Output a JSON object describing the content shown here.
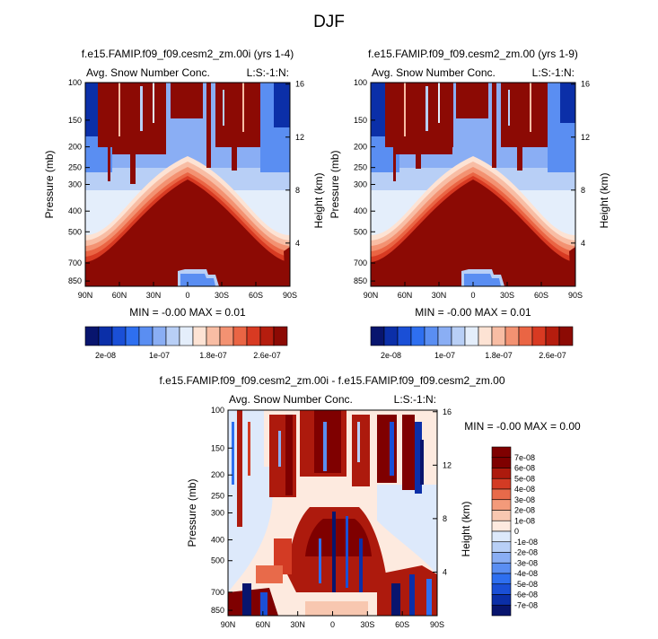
{
  "page_title": "DJF",
  "chart_data": [
    {
      "type": "heatmap",
      "id": "p1",
      "title": "f.e15.FAMIP.f09_f09.cesm2_zm.00i (yrs 1-4)",
      "left_label": "Avg. Snow Number Conc.",
      "right_label": "L:S:-1:N:",
      "ylabel": "Pressure (mb)",
      "y2label": "Height (km)",
      "x_ticks": [
        "90N",
        "60N",
        "30N",
        "0",
        "30S",
        "60S",
        "90S"
      ],
      "y_ticks": [
        "100",
        "150",
        "200",
        "250",
        "300",
        "400",
        "500",
        "700",
        "850"
      ],
      "y2_ticks": [
        "16",
        "12",
        "8",
        "4"
      ],
      "min_max": "MIN = -0.00   MAX =  0.01",
      "colorbar_labels": [
        "2e-08",
        "1e-07",
        "1.8e-07",
        "2.6e-07"
      ]
    },
    {
      "type": "heatmap",
      "id": "p2",
      "title": "f.e15.FAMIP.f09_f09.cesm2_zm.00 (yrs 1-9)",
      "left_label": "Avg. Snow Number Conc.",
      "right_label": "L:S:-1:N:",
      "ylabel": "Pressure (mb)",
      "y2label": "Height (km)",
      "x_ticks": [
        "90N",
        "60N",
        "30N",
        "0",
        "30S",
        "60S",
        "90S"
      ],
      "y_ticks": [
        "100",
        "150",
        "200",
        "250",
        "300",
        "400",
        "500",
        "700",
        "850"
      ],
      "y2_ticks": [
        "16",
        "12",
        "8",
        "4"
      ],
      "min_max": "MIN = -0.00   MAX =  0.01",
      "colorbar_labels": [
        "2e-08",
        "1e-07",
        "1.8e-07",
        "2.6e-07"
      ]
    },
    {
      "type": "heatmap",
      "id": "p3",
      "title": "f.e15.FAMIP.f09_f09.cesm2_zm.00i - f.e15.FAMIP.f09_f09.cesm2_zm.00",
      "left_label": "Avg. Snow Number Conc.",
      "right_label": "L:S:-1:N:",
      "ylabel": "Pressure (mb)",
      "y2label": "Height (km)",
      "x_ticks": [
        "90N",
        "60N",
        "30N",
        "0",
        "30S",
        "60S",
        "90S"
      ],
      "y_ticks": [
        "100",
        "150",
        "200",
        "250",
        "300",
        "400",
        "500",
        "700",
        "850"
      ],
      "y2_ticks": [
        "16",
        "12",
        "8",
        "4"
      ],
      "min_max": "MIN =  -0.00   MAX =   0.00",
      "colorbar_labels": [
        "7e-08",
        "6e-08",
        "5e-08",
        "4e-08",
        "3e-08",
        "2e-08",
        "1e-08",
        "0",
        "-1e-08",
        "-2e-08",
        "-3e-08",
        "-4e-08",
        "-5e-08",
        "-6e-08",
        "-7e-08"
      ]
    }
  ],
  "colors": {
    "sequential": [
      "#08156e",
      "#0b2fa8",
      "#1a4fd6",
      "#2e6ff0",
      "#5a8ef2",
      "#8aaef4",
      "#b8cff6",
      "#e4eefb",
      "#fde3d4",
      "#f8bda4",
      "#f39272",
      "#ea6544",
      "#d83a22",
      "#b51d0e",
      "#8c0a04"
    ],
    "diverging": [
      "#08156e",
      "#0b2fa8",
      "#1a4fd6",
      "#2e6ff0",
      "#5a8ef2",
      "#8aaef4",
      "#b8cff6",
      "#dde9fb",
      "#fdeadf",
      "#f8c7b0",
      "#f39a7a",
      "#e86a4a",
      "#d33b24",
      "#ad1a0d",
      "#7f0000"
    ]
  }
}
